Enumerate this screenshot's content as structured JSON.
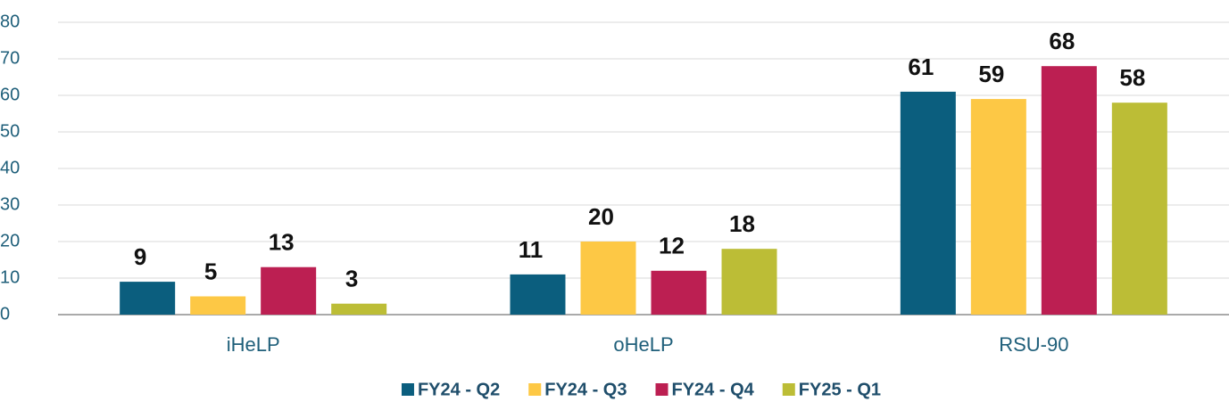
{
  "chart_data": {
    "type": "bar",
    "categories": [
      "iHeLP",
      "oHeLP",
      "RSU-90"
    ],
    "series": [
      {
        "name": "FY24 - Q2",
        "color": "#0b5e7e",
        "values": [
          9,
          11,
          61
        ]
      },
      {
        "name": "FY24 - Q3",
        "color": "#fdc845",
        "values": [
          5,
          20,
          59
        ]
      },
      {
        "name": "FY24 - Q4",
        "color": "#bc1f52",
        "values": [
          13,
          12,
          68
        ]
      },
      {
        "name": "FY25 - Q1",
        "color": "#bcbd36",
        "values": [
          3,
          18,
          58
        ]
      }
    ],
    "ylim": [
      0,
      80
    ],
    "yticks": [
      0,
      10,
      20,
      30,
      40,
      50,
      60,
      70,
      80
    ],
    "grid": true,
    "legend": "bottom"
  }
}
